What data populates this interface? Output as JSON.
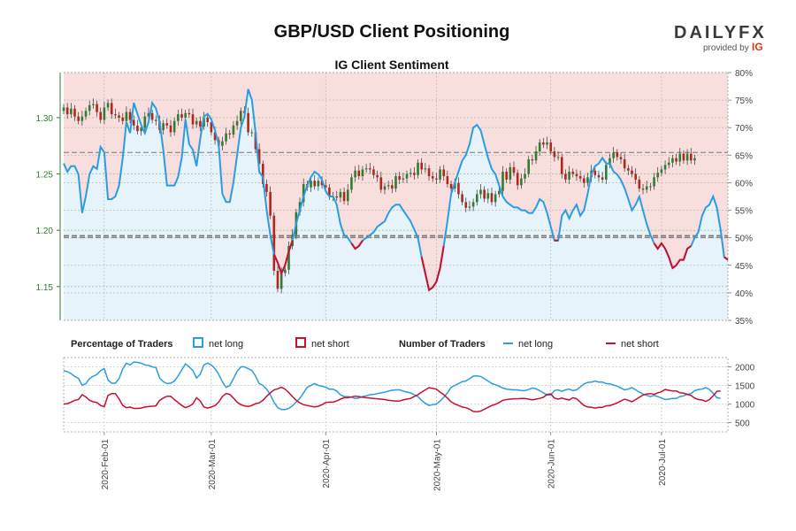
{
  "header": {
    "title": "GBP/USD Client Positioning",
    "subtitle": "IG Client Sentiment",
    "brand_name": "DAILYFX",
    "brand_tagline": "provided by",
    "brand_partner": "IG"
  },
  "legend": {
    "pct_title": "Percentage of Traders",
    "pct_long": "net long",
    "pct_short": "net short",
    "num_title": "Number of Traders",
    "num_long": "net long",
    "num_short": "net short"
  },
  "colors": {
    "long": "#2a9de0",
    "short": "#c8102e",
    "long_bg": "#e6f3fb",
    "short_bg": "#f9dede",
    "candle_up": "#2e7d32",
    "candle_down": "#b3261e",
    "price_axis": "#2e7d32"
  },
  "chart_data": [
    {
      "type": "line",
      "name": "price_and_sentiment",
      "price_axis": {
        "ticks": [
          1.15,
          1.2,
          1.25,
          1.3
        ],
        "tick_labels": [
          "1.15",
          "1.20",
          "1.25",
          "1.30"
        ],
        "ylim": [
          1.12,
          1.34
        ]
      },
      "sentiment_axis": {
        "ticks": [
          35,
          40,
          45,
          50,
          55,
          60,
          65,
          70,
          75,
          80
        ],
        "tick_labels": [
          "35%",
          "40%",
          "45%",
          "50%",
          "55%",
          "60%",
          "65%",
          "70%",
          "75%",
          "80%"
        ],
        "ylim": [
          35,
          80
        ]
      },
      "reference_lines": [
        {
          "axis": "price",
          "value": 1.195
        },
        {
          "axis": "sentiment",
          "value": 50
        },
        {
          "axis": "sentiment",
          "value": 65.5
        }
      ],
      "x_labels": [
        "2020-Feb-01",
        "2020-Mar-01",
        "2020-Apr-01",
        "2020-May-01",
        "2020-Jun-01",
        "2020-Jul-01"
      ],
      "x_label_days": [
        11,
        40,
        71,
        101,
        132,
        162
      ],
      "days": 181,
      "price_close": [
        1.309,
        1.303,
        1.308,
        1.301,
        1.297,
        1.301,
        1.306,
        1.311,
        1.312,
        1.305,
        1.298,
        1.309,
        1.313,
        1.303,
        1.302,
        1.3,
        1.297,
        1.305,
        1.298,
        1.293,
        1.288,
        1.291,
        1.301,
        1.304,
        1.298,
        1.297,
        1.289,
        1.295,
        1.293,
        1.287,
        1.297,
        1.303,
        1.3,
        1.304,
        1.303,
        1.294,
        1.297,
        1.292,
        1.3,
        1.296,
        1.287,
        1.28,
        1.275,
        1.279,
        1.286,
        1.285,
        1.293,
        1.297,
        1.306,
        1.304,
        1.287,
        1.287,
        1.272,
        1.259,
        1.241,
        1.234,
        1.213,
        1.164,
        1.148,
        1.162,
        1.165,
        1.186,
        1.196,
        1.216,
        1.225,
        1.241,
        1.238,
        1.244,
        1.239,
        1.244,
        1.24,
        1.238,
        1.23,
        1.23,
        1.229,
        1.234,
        1.226,
        1.236,
        1.247,
        1.253,
        1.248,
        1.254,
        1.255,
        1.254,
        1.249,
        1.247,
        1.236,
        1.239,
        1.24,
        1.237,
        1.248,
        1.245,
        1.246,
        1.25,
        1.251,
        1.249,
        1.26,
        1.254,
        1.255,
        1.248,
        1.246,
        1.245,
        1.254,
        1.248,
        1.241,
        1.237,
        1.242,
        1.232,
        1.225,
        1.22,
        1.221,
        1.225,
        1.232,
        1.236,
        1.228,
        1.233,
        1.225,
        1.232,
        1.235,
        1.252,
        1.245,
        1.256,
        1.251,
        1.24,
        1.246,
        1.25,
        1.263,
        1.262,
        1.27,
        1.278,
        1.276,
        1.278,
        1.27,
        1.265,
        1.265,
        1.25,
        1.245,
        1.252,
        1.25,
        1.248,
        1.246,
        1.242,
        1.247,
        1.253,
        1.249,
        1.247,
        1.245,
        1.258,
        1.264,
        1.269,
        1.265,
        1.263,
        1.255,
        1.253,
        1.25,
        1.245,
        1.237,
        1.236,
        1.239,
        1.239,
        1.247,
        1.251,
        1.254,
        1.258,
        1.26,
        1.264,
        1.261,
        1.268,
        1.262,
        1.268,
        1.262,
        1.264
      ],
      "pct_long": [
        63.5,
        62.0,
        63.0,
        63.0,
        61.5,
        54.5,
        57.5,
        61.5,
        63.0,
        62.5,
        66.5,
        65.5,
        57.0,
        57.0,
        57.5,
        59.5,
        64.5,
        71.0,
        69.0,
        74.5,
        72.5,
        70.5,
        69.0,
        71.0,
        74.5,
        73.5,
        71.0,
        66.0,
        59.5,
        59.5,
        59.5,
        61.0,
        64.5,
        71.5,
        67.0,
        66.0,
        63.0,
        68.0,
        72.0,
        72.5,
        71.5,
        69.5,
        67.0,
        58.0,
        56.5,
        56.5,
        60.0,
        65.0,
        70.0,
        72.0,
        77.0,
        75.0,
        69.0,
        62.0,
        61.0,
        55.0,
        50.5,
        47.0,
        45.5,
        43.5,
        45.0,
        47.5,
        49.5,
        52.5,
        55.0,
        57.5,
        59.5,
        61.0,
        62.0,
        61.5,
        60.5,
        58.5,
        57.5,
        57.5,
        56.0,
        52.5,
        50.5,
        50.0,
        49.0,
        48.0,
        48.5,
        49.5,
        50.0,
        50.5,
        51.0,
        52.0,
        52.5,
        53.0,
        54.5,
        55.5,
        56.0,
        56.0,
        55.0,
        54.0,
        53.0,
        51.5,
        50.0,
        46.5,
        43.5,
        40.5,
        41.0,
        42.0,
        44.5,
        48.5,
        53.0,
        58.0,
        60.0,
        62.0,
        64.0,
        65.0,
        67.0,
        70.0,
        70.5,
        69.5,
        67.0,
        64.5,
        62.5,
        61.5,
        59.5,
        57.5,
        56.5,
        56.0,
        55.5,
        55.5,
        55.0,
        55.0,
        54.5,
        54.5,
        55.5,
        57.0,
        56.5,
        54.5,
        52.0,
        49.5,
        49.5,
        54.0,
        55.0,
        53.5,
        55.0,
        56.0,
        54.0,
        55.0,
        58.0,
        61.5,
        63.0,
        63.5,
        64.5,
        63.5,
        63.5,
        62.0,
        61.5,
        60.5,
        59.0,
        57.0,
        55.0,
        56.0,
        57.5,
        55.0,
        52.5,
        50.5,
        49.0,
        48.0,
        49.0,
        48.0,
        46.5,
        44.5,
        45.0,
        46.0,
        46.0,
        48.0,
        48.5,
        50.0,
        51.0,
        54.0,
        55.5,
        56.0,
        57.5,
        55.5,
        51.5,
        46.5,
        46.0
      ],
      "long_traders": [
        1895,
        1870,
        1820,
        1740,
        1690,
        1500,
        1550,
        1680,
        1750,
        1790,
        1900,
        1950,
        1650,
        1560,
        1560,
        1680,
        1950,
        2100,
        2050,
        2130,
        2120,
        2100,
        2050,
        2040,
        2000,
        1980,
        1700,
        1600,
        1550,
        1560,
        1620,
        1750,
        1920,
        2080,
        2000,
        1900,
        1700,
        1800,
        2050,
        2100,
        2050,
        1950,
        1800,
        1600,
        1450,
        1500,
        1680,
        1880,
        2000,
        2000,
        1950,
        1900,
        1750,
        1550,
        1500,
        1400,
        1250,
        1050,
        900,
        850,
        850,
        880,
        950,
        1050,
        1150,
        1300,
        1450,
        1500,
        1550,
        1500,
        1480,
        1450,
        1400,
        1400,
        1350,
        1250,
        1200,
        1200,
        1180,
        1150,
        1160,
        1200,
        1220,
        1250,
        1260,
        1280,
        1300,
        1320,
        1350,
        1370,
        1380,
        1380,
        1350,
        1320,
        1300,
        1250,
        1200,
        1100,
        1020,
        960,
        980,
        1000,
        1080,
        1180,
        1300,
        1450,
        1500,
        1550,
        1600,
        1620,
        1680,
        1750,
        1760,
        1740,
        1680,
        1620,
        1550,
        1520,
        1480,
        1430,
        1400,
        1390,
        1380,
        1380,
        1360,
        1360,
        1390,
        1430,
        1410,
        1360,
        1300,
        1240,
        1240,
        1360,
        1380,
        1340,
        1380,
        1400,
        1360,
        1380,
        1460,
        1540,
        1580,
        1590,
        1620,
        1590,
        1590,
        1550,
        1540,
        1510,
        1480,
        1430,
        1380,
        1400,
        1440,
        1380,
        1320,
        1270,
        1230,
        1200,
        1230,
        1200,
        1160,
        1120,
        1130,
        1150,
        1150,
        1200,
        1220,
        1260,
        1280,
        1360,
        1390,
        1400,
        1440,
        1390,
        1290,
        1170,
        1150
      ],
      "short_traders": [
        1000,
        1010,
        1050,
        1100,
        1120,
        1250,
        1190,
        1100,
        1060,
        1040,
        960,
        930,
        1230,
        1280,
        1280,
        1140,
        960,
        900,
        920,
        880,
        880,
        890,
        920,
        930,
        940,
        950,
        1100,
        1160,
        1210,
        1210,
        1120,
        1040,
        960,
        900,
        940,
        1000,
        1170,
        1080,
        920,
        890,
        920,
        960,
        1050,
        1200,
        1280,
        1260,
        1160,
        1050,
        980,
        950,
        930,
        960,
        1010,
        1030,
        1100,
        1210,
        1300,
        1380,
        1410,
        1450,
        1400,
        1310,
        1200,
        1100,
        1030,
        980,
        960,
        940,
        920,
        940,
        980,
        1040,
        1050,
        1050,
        1080,
        1130,
        1170,
        1170,
        1190,
        1210,
        1200,
        1180,
        1170,
        1160,
        1150,
        1140,
        1130,
        1120,
        1100,
        1090,
        1080,
        1080,
        1110,
        1130,
        1150,
        1200,
        1250,
        1320,
        1380,
        1440,
        1420,
        1400,
        1320,
        1250,
        1160,
        1060,
        1000,
        960,
        920,
        900,
        860,
        800,
        790,
        810,
        860,
        910,
        960,
        990,
        1040,
        1100,
        1120,
        1130,
        1140,
        1140,
        1150,
        1150,
        1130,
        1110,
        1130,
        1150,
        1180,
        1260,
        1270,
        1160,
        1130,
        1160,
        1130,
        1110,
        1170,
        1140,
        1050,
        960,
        920,
        910,
        890,
        910,
        910,
        950,
        960,
        990,
        1030,
        1080,
        1130,
        1100,
        1060,
        1120,
        1180,
        1240,
        1270,
        1280,
        1260,
        1300,
        1330,
        1390,
        1370,
        1350,
        1350,
        1300,
        1290,
        1260,
        1230,
        1160,
        1120,
        1110,
        1070,
        1120,
        1220,
        1340,
        1350
      ]
    },
    {
      "type": "line",
      "name": "number_of_traders",
      "y_axis": {
        "ticks": [
          500,
          1000,
          1500,
          2000
        ],
        "tick_labels": [
          "500",
          "1000",
          "1500",
          "2000"
        ],
        "ylim": [
          250,
          2250
        ]
      }
    }
  ]
}
